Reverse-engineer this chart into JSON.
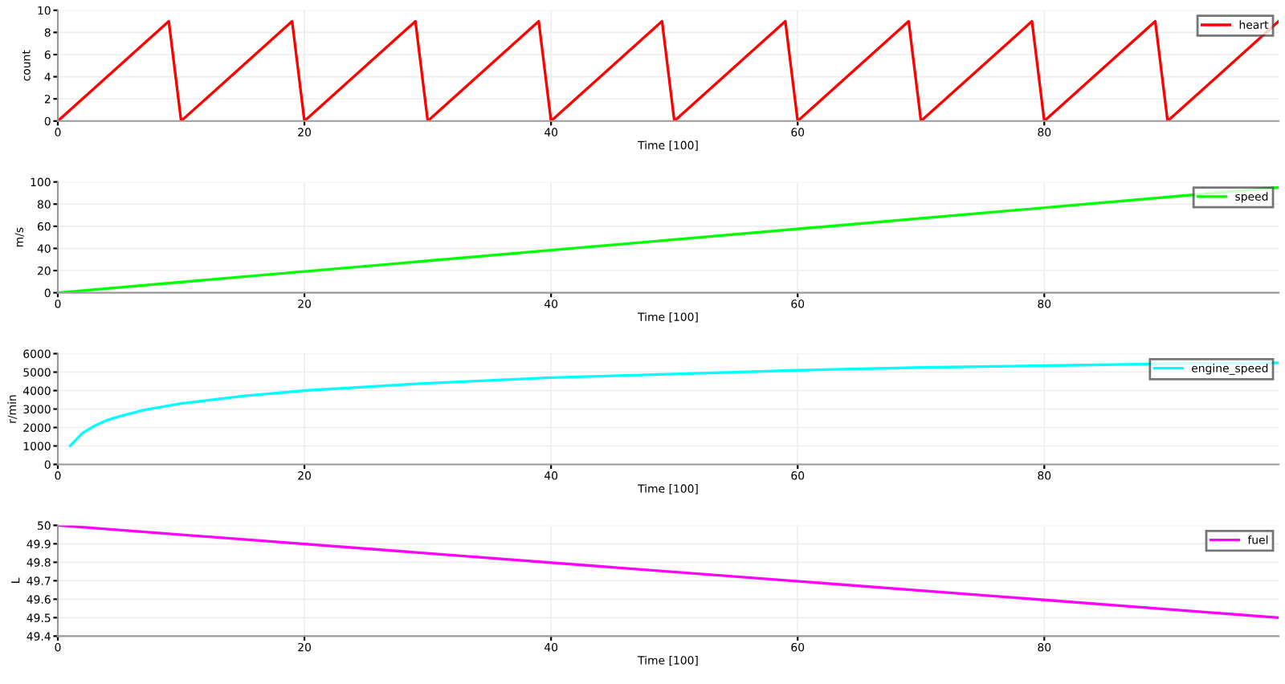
{
  "chart_data": [
    {
      "type": "line",
      "xlabel": "Time [100]",
      "ylabel": "count",
      "xlim": [
        0,
        99
      ],
      "xticks": [
        0,
        20,
        40,
        60,
        80
      ],
      "ylim": [
        0,
        10
      ],
      "yticks": [
        0,
        2,
        4,
        6,
        8,
        10
      ],
      "grid": true,
      "legend": "top right",
      "marker": "none",
      "line_style": "solid",
      "series": [
        {
          "name": "heart",
          "color": "#ff0000",
          "x": [
            0,
            9,
            10,
            19,
            20,
            29,
            30,
            39,
            40,
            49,
            50,
            59,
            60,
            69,
            70,
            79,
            80,
            89,
            90,
            99
          ],
          "values": [
            0,
            9,
            0,
            9,
            0,
            9,
            0,
            9,
            0,
            9,
            0,
            9,
            0,
            9,
            0,
            9,
            0,
            9,
            0,
            9
          ]
        }
      ]
    },
    {
      "type": "line",
      "xlabel": "Time [100]",
      "ylabel": "m/s",
      "xlim": [
        0,
        99
      ],
      "xticks": [
        0,
        20,
        40,
        60,
        80
      ],
      "ylim": [
        0,
        100
      ],
      "yticks": [
        0,
        20,
        40,
        60,
        80,
        100
      ],
      "grid": true,
      "legend": "top right",
      "marker": "none",
      "line_style": "solid",
      "series": [
        {
          "name": "speed",
          "color": "#00ff00",
          "x": [
            0,
            99
          ],
          "values": [
            0,
            95
          ]
        }
      ]
    },
    {
      "type": "line",
      "xlabel": "Time [100]",
      "ylabel": "r/min",
      "xlim": [
        0,
        99
      ],
      "xticks": [
        0,
        20,
        40,
        60,
        80
      ],
      "ylim": [
        0,
        6000
      ],
      "yticks": [
        0,
        1000,
        2000,
        3000,
        4000,
        5000,
        6000
      ],
      "grid": true,
      "legend": "top right",
      "marker": "none",
      "line_style": "solid",
      "series": [
        {
          "name": "engine_speed",
          "color": "#00ffff",
          "x": [
            1,
            2,
            3,
            4,
            5,
            7,
            10,
            15,
            20,
            30,
            40,
            50,
            60,
            70,
            80,
            90,
            99
          ],
          "values": [
            1000,
            1700,
            2100,
            2400,
            2600,
            2950,
            3300,
            3700,
            4000,
            4400,
            4700,
            4900,
            5100,
            5250,
            5350,
            5450,
            5500
          ]
        }
      ]
    },
    {
      "type": "line",
      "xlabel": "Time [100]",
      "ylabel": "L",
      "xlim": [
        0,
        99
      ],
      "xticks": [
        0,
        20,
        40,
        60,
        80
      ],
      "ylim": [
        49.4,
        50
      ],
      "yticks": [
        49.4,
        49.5,
        49.6,
        49.7,
        49.8,
        49.9,
        50
      ],
      "grid": true,
      "legend": "top right",
      "marker": "none",
      "line_style": "solid",
      "series": [
        {
          "name": "fuel",
          "color": "#ff00ff",
          "x": [
            0,
            99
          ],
          "values": [
            50,
            49.5
          ]
        }
      ]
    }
  ]
}
